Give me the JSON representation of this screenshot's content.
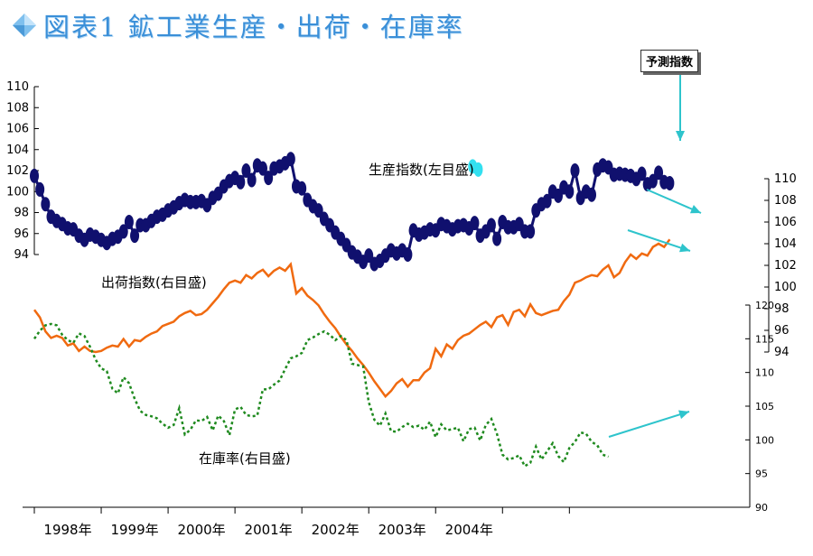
{
  "title": "図表1 鉱工業生産・出荷・在庫率",
  "callout_text": "予測指数",
  "colors": {
    "production": "#10106e",
    "forecast": "#33e0f0",
    "shipments": "#f06a10",
    "inventory": "#1f8a1f",
    "arrow": "#2ec4cc",
    "title": "#3a8fd8"
  },
  "chart_data": {
    "type": "line",
    "x_labels": [
      "1998年",
      "1999年",
      "2000年",
      "2001年",
      "2002年",
      "2003年",
      "2004年"
    ],
    "axes": {
      "left": {
        "ticks": [
          "94",
          "96",
          "98",
          "100",
          "102",
          "104",
          "106",
          "108",
          "110"
        ],
        "ylim": [
          94,
          110
        ]
      },
      "right1": {
        "ticks": [
          "94",
          "96",
          "98",
          "100",
          "102",
          "104",
          "106",
          "108",
          "110"
        ],
        "ylim": [
          94,
          110
        ]
      },
      "right2": {
        "ticks": [
          "90",
          "95",
          "100",
          "105",
          "110",
          "115",
          "120"
        ],
        "ylim": [
          90,
          120
        ]
      }
    },
    "series": [
      {
        "name": "生産指数(左目盛)",
        "axis": "left",
        "start": "1998-01",
        "values": [
          101.5,
          100.2,
          98.8,
          97.6,
          97.2,
          96.9,
          96.5,
          96.4,
          95.8,
          95.4,
          95.9,
          95.7,
          95.4,
          95.1,
          95.5,
          95.7,
          96.2,
          97.1,
          95.8,
          96.8,
          96.8,
          97.2,
          97.6,
          97.8,
          98.2,
          98.5,
          98.9,
          99.2,
          99.0,
          99.0,
          99.1,
          98.7,
          99.4,
          99.8,
          100.5,
          101.0,
          101.3,
          100.9,
          102.0,
          101.1,
          102.5,
          102.2,
          101.3,
          102.2,
          102.4,
          102.7,
          103.1,
          100.5,
          100.3,
          99.2,
          98.6,
          98.2,
          97.4,
          96.8,
          96.1,
          95.5,
          94.9,
          94.2,
          93.8,
          93.3,
          93.9,
          93.1,
          93.4,
          93.9,
          94.4,
          94.1,
          94.4,
          94.0,
          96.3,
          95.9,
          96.1,
          96.4,
          96.3,
          96.9,
          96.7,
          96.4,
          96.7,
          96.8,
          96.5,
          97.0,
          95.8,
          96.2,
          96.8,
          95.5,
          97.1,
          96.6,
          96.6,
          96.9,
          96.2,
          96.2,
          98.2,
          98.8,
          99.1,
          100.0,
          99.6,
          100.4,
          100.0,
          102.0,
          99.4,
          100.0,
          99.7,
          102.1,
          102.5,
          102.3,
          101.6,
          101.7,
          101.6,
          101.5,
          101.2,
          101.7,
          100.7,
          101.0,
          101.8,
          100.9,
          100.8
        ]
      },
      {
        "name": "予測",
        "axis": "left",
        "start": "2004-07",
        "values": [
          102.4,
          102.1
        ]
      },
      {
        "name": "出荷指数(右目盛)",
        "axis": "right1",
        "start": "1998-01",
        "values": [
          97.9,
          97.2,
          95.9,
          95.3,
          95.5,
          95.3,
          94.6,
          94.8,
          94.1,
          94.5,
          94.1,
          94.0,
          94.1,
          94.4,
          94.6,
          94.5,
          95.2,
          94.5,
          95.1,
          95.0,
          95.4,
          95.7,
          95.9,
          96.4,
          96.6,
          96.8,
          97.3,
          97.6,
          97.8,
          97.4,
          97.5,
          97.9,
          98.5,
          99.1,
          99.8,
          100.4,
          100.6,
          100.4,
          101.1,
          100.8,
          101.3,
          101.6,
          101.0,
          101.5,
          101.8,
          101.5,
          102.1,
          99.4,
          99.9,
          99.2,
          98.8,
          98.3,
          97.5,
          96.8,
          96.2,
          95.4,
          94.7,
          94.1,
          93.4,
          92.8,
          92.1,
          91.3,
          90.6,
          89.9,
          90.4,
          91.1,
          91.5,
          90.8,
          91.4,
          91.4,
          92.1,
          92.5,
          94.3,
          93.6,
          94.7,
          94.3,
          95.1,
          95.5,
          95.7,
          96.1,
          96.5,
          96.8,
          96.3,
          97.2,
          97.4,
          96.5,
          97.7,
          97.9,
          97.3,
          98.4,
          97.6,
          97.4,
          97.6,
          97.8,
          97.9,
          98.7,
          99.3,
          100.4,
          100.6,
          100.9,
          101.1,
          101.0,
          101.6,
          102.0,
          100.9,
          101.3,
          102.3,
          103.0,
          102.6,
          103.1,
          102.9,
          103.7,
          104.0,
          103.7,
          104.4
        ]
      },
      {
        "name": "在庫率(右目盛)",
        "axis": "right2",
        "start": "1998-01",
        "values": [
          115.0,
          116.2,
          117.0,
          117.2,
          117.0,
          115.6,
          114.8,
          114.4,
          115.8,
          115.4,
          113.8,
          111.9,
          110.6,
          110.2,
          107.6,
          106.9,
          109.3,
          108.4,
          106.1,
          104.3,
          103.7,
          103.5,
          103.2,
          102.4,
          101.8,
          102.2,
          104.7,
          100.8,
          101.5,
          102.9,
          102.8,
          103.4,
          101.4,
          103.6,
          102.8,
          100.7,
          104.5,
          104.9,
          103.7,
          103.5,
          103.6,
          107.5,
          107.5,
          108.2,
          108.8,
          110.5,
          112.1,
          112.4,
          112.9,
          114.8,
          115.2,
          115.7,
          116.1,
          115.6,
          114.8,
          115.4,
          114.8,
          111.3,
          111.1,
          110.9,
          105.6,
          103.0,
          102.1,
          103.9,
          101.3,
          101.2,
          101.9,
          102.4,
          101.9,
          102.1,
          101.5,
          102.7,
          100.4,
          102.3,
          101.4,
          101.6,
          101.8,
          99.8,
          101.6,
          101.8,
          99.9,
          102.2,
          103.1,
          100.9,
          97.8,
          97.1,
          97.3,
          97.7,
          96.1,
          96.6,
          99.0,
          97.1,
          98.3,
          99.5,
          97.6,
          96.7,
          98.8,
          99.7,
          101.1,
          100.9,
          99.7,
          99.2,
          97.8,
          97.5
        ]
      }
    ]
  },
  "annotations": {
    "production": "生産指数(左目盛)",
    "shipments": "出荷指数(右目盛)",
    "inventory": "在庫率(右目盛)"
  }
}
